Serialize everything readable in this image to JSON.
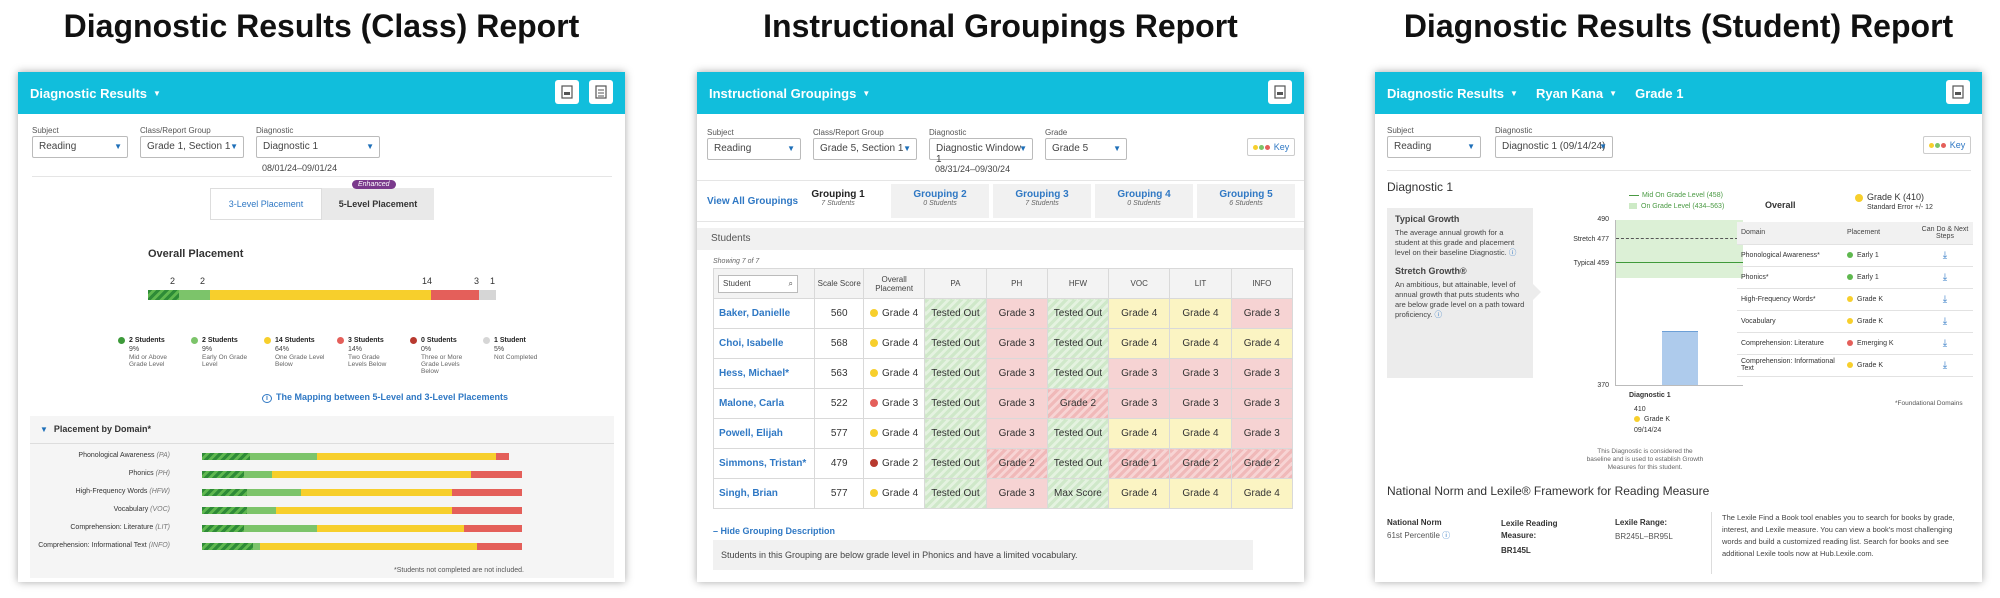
{
  "titles": {
    "class": "Diagnostic Results (Class) Report",
    "groupings": "Instructional Groupings Report",
    "student": "Diagnostic Results (Student) Report"
  },
  "class_report": {
    "header": {
      "menu": "Diagnostic Results"
    },
    "filters": {
      "subject_label": "Subject",
      "subject": "Reading",
      "group_label": "Class/Report Group",
      "group": "Grade 1, Section 1",
      "diag_label": "Diagnostic",
      "diag": "Diagnostic 1",
      "date_range": "08/01/24–09/01/24"
    },
    "toggle": {
      "three": "3-Level Placement",
      "five": "5-Level Placement",
      "badge": "Enhanced"
    },
    "overall": {
      "title": "Overall Placement",
      "bar_counts": [
        "2",
        "2",
        "14",
        "3",
        "1"
      ],
      "legend": [
        {
          "count": "2 Students",
          "pct": "9%",
          "desc": "Mid or Above Grade Level"
        },
        {
          "count": "2 Students",
          "pct": "9%",
          "desc": "Early On Grade Level"
        },
        {
          "count": "14 Students",
          "pct": "64%",
          "desc": "One Grade Level Below"
        },
        {
          "count": "3 Students",
          "pct": "14%",
          "desc": "Two Grade Levels Below"
        },
        {
          "count": "0 Students",
          "pct": "0%",
          "desc": "Three or More Grade Levels Below"
        },
        {
          "count": "1 Student",
          "pct": "5%",
          "desc": "Not Completed"
        }
      ],
      "segments": [
        0.09,
        0.09,
        0.64,
        0.14,
        0.0,
        0.05
      ]
    },
    "mapping_link": "The Mapping between 5-Level and 3-Level Placements",
    "domain": {
      "title": "Placement by Domain*",
      "rows": [
        {
          "label": "Phonological Awareness",
          "abbr": "(PA)",
          "segs": [
            0.15,
            0.21,
            0.56,
            0.04
          ]
        },
        {
          "label": "Phonics",
          "abbr": "(PH)",
          "segs": [
            0.13,
            0.09,
            0.62,
            0.16
          ]
        },
        {
          "label": "High-Frequency Words",
          "abbr": "(HFW)",
          "segs": [
            0.14,
            0.17,
            0.47,
            0.22
          ]
        },
        {
          "label": "Vocabulary",
          "abbr": "(VOC)",
          "segs": [
            0.14,
            0.09,
            0.55,
            0.22
          ]
        },
        {
          "label": "Comprehension: Literature",
          "abbr": "(LIT)",
          "segs": [
            0.13,
            0.23,
            0.46,
            0.18
          ]
        },
        {
          "label": "Comprehension: Informational Text",
          "abbr": "(INFO)",
          "segs": [
            0.16,
            0.02,
            0.68,
            0.14
          ]
        }
      ],
      "footnote": "*Students not completed are not included."
    },
    "colors": {
      "header": "#11bedc",
      "green": "#5fb84f",
      "yellow": "#f7cf2c",
      "red": "#e45f5a",
      "gray": "#d6d6d6"
    }
  },
  "groupings_report": {
    "header": {
      "menu": "Instructional Groupings"
    },
    "filters": {
      "subject_label": "Subject",
      "subject": "Reading",
      "group_label": "Class/Report Group",
      "group": "Grade 5, Section 1",
      "diag_label": "Diagnostic",
      "diag": "Diagnostic Window 1",
      "grade_label": "Grade",
      "grade": "Grade 5",
      "date_range": "08/31/24–09/30/24",
      "key": "Key"
    },
    "tabs": {
      "view_all": "View All Groupings",
      "items": [
        {
          "name": "Grouping 1",
          "count": "7 Students"
        },
        {
          "name": "Grouping 2",
          "count": "0 Students"
        },
        {
          "name": "Grouping 3",
          "count": "7 Students"
        },
        {
          "name": "Grouping 4",
          "count": "0 Students"
        },
        {
          "name": "Grouping 5",
          "count": "6 Students"
        }
      ]
    },
    "students_label": "Students",
    "showing": "Showing 7 of 7",
    "columns": {
      "search": "Student",
      "score": "Scale Score",
      "overall": "Overall Placement",
      "pa": "PA",
      "ph": "PH",
      "hfw": "HFW",
      "voc": "VOC",
      "lit": "LIT",
      "info": "INFO"
    },
    "rows": [
      {
        "name": "Baker, Danielle",
        "score": "560",
        "placement": "Grade 4",
        "dot": "yellow",
        "pa": "Tested Out",
        "ph": "Grade 3",
        "hfw": "Tested Out",
        "voc": "Grade 4",
        "lit": "Grade 4",
        "info": "Grade 3"
      },
      {
        "name": "Choi, Isabelle",
        "score": "568",
        "placement": "Grade 4",
        "dot": "yellow",
        "pa": "Tested Out",
        "ph": "Grade 3",
        "hfw": "Tested Out",
        "voc": "Grade 4",
        "lit": "Grade 4",
        "info": "Grade 4"
      },
      {
        "name": "Hess, Michael*",
        "score": "563",
        "placement": "Grade 4",
        "dot": "yellow",
        "pa": "Tested Out",
        "ph": "Grade 3",
        "hfw": "Tested Out",
        "voc": "Grade 3",
        "lit": "Grade 3",
        "info": "Grade 3"
      },
      {
        "name": "Malone, Carla",
        "score": "522",
        "placement": "Grade 3",
        "dot": "red",
        "pa": "Tested Out",
        "ph": "Grade 3",
        "hfw": "Grade 2",
        "voc": "Grade 3",
        "lit": "Grade 3",
        "info": "Grade 3"
      },
      {
        "name": "Powell, Elijah",
        "score": "577",
        "placement": "Grade 4",
        "dot": "yellow",
        "pa": "Tested Out",
        "ph": "Grade 3",
        "hfw": "Tested Out",
        "voc": "Grade 4",
        "lit": "Grade 4",
        "info": "Grade 3"
      },
      {
        "name": "Simmons, Tristan*",
        "score": "479",
        "placement": "Grade 2",
        "dot": "darkred",
        "pa": "Tested Out",
        "ph": "Grade 2",
        "hfw": "Tested Out",
        "voc": "Grade 1",
        "lit": "Grade 2",
        "info": "Grade 2"
      },
      {
        "name": "Singh, Brian",
        "score": "577",
        "placement": "Grade 4",
        "dot": "yellow",
        "pa": "Tested Out",
        "ph": "Grade 3",
        "hfw": "Max Score",
        "voc": "Grade 4",
        "lit": "Grade 4",
        "info": "Grade 4"
      }
    ],
    "hide_desc": "– Hide Grouping Description",
    "description": "Students in this Grouping are below grade level in Phonics and have a limited vocabulary."
  },
  "student_report": {
    "header": {
      "menu": "Diagnostic Results",
      "student": "Ryan Kana",
      "grade": "Grade 1"
    },
    "filters": {
      "subject_label": "Subject",
      "subject": "Reading",
      "diag_label": "Diagnostic",
      "diag": "Diagnostic 1 (09/14/24)",
      "key": "Key"
    },
    "diag_title": "Diagnostic 1",
    "growth": {
      "typical_title": "Typical Growth",
      "typical_text": "The average annual growth for a student at this grade and placement level on their baseline Diagnostic.",
      "stretch_title": "Stretch Growth®",
      "stretch_text": "An ambitious, but attainable, level of annual growth that puts students who are below grade level on a path toward proficiency."
    },
    "chart": {
      "legend_mid": "Mid On Grade Level (458)",
      "legend_on": "On Grade Level (434–563)",
      "y_top": "490",
      "stretch": "Stretch 477",
      "typical": "Typical 459",
      "y_bottom": "370",
      "bar_label": "Diagnostic 1",
      "score": "410",
      "grade": "Grade K",
      "date": "09/14/24",
      "note": "This Diagnostic is considered the baseline and is used to establish Growth Measures for this student."
    },
    "overall": {
      "label": "Overall",
      "placement": "Grade K (410)",
      "std_err": "Standard Error +/- 12"
    },
    "domain_cols": {
      "domain": "Domain",
      "placement": "Placement",
      "cando": "Can Do & Next Steps"
    },
    "domains": [
      {
        "name": "Phonological Awareness*",
        "placement": "Early 1",
        "dot": "green"
      },
      {
        "name": "Phonics*",
        "placement": "Early 1",
        "dot": "green"
      },
      {
        "name": "High-Frequency Words*",
        "placement": "Grade K",
        "dot": "yellow"
      },
      {
        "name": "Vocabulary",
        "placement": "Grade K",
        "dot": "yellow"
      },
      {
        "name": "Comprehension: Literature",
        "placement": "Emerging K",
        "dot": "red"
      },
      {
        "name": "Comprehension: Informational Text",
        "placement": "Grade K",
        "dot": "yellow"
      }
    ],
    "foundational": "*Foundational Domains",
    "norm_title": "National Norm and Lexile® Framework for Reading Measure",
    "norm": {
      "nn_label": "National Norm",
      "nn_value": "61st Percentile",
      "lrm_label": "Lexile Reading Measure:",
      "lrm_value": "BR145L",
      "lr_label": "Lexile Range:",
      "lr_value": "BR245L–BR95L",
      "lexile_text": "The Lexile Find a Book tool enables you to search for books by grade, interest, and Lexile measure. You can view a book's most challenging words and build a customized reading list. Search for books and see additional Lexile tools now at Hub.Lexile.com."
    }
  }
}
